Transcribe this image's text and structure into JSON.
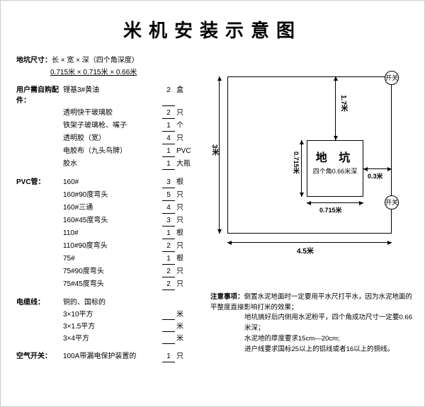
{
  "title": "米机安装示意图",
  "pit_dim": {
    "label": "地坑尺寸：",
    "spec": "长 × 宽 × 深（四个角深度）",
    "values": "0.715米 × 0.715米 × 0.66米"
  },
  "groups": [
    {
      "name": "用户需自购配件：",
      "items": [
        {
          "item": "锂基3#黄油",
          "qty": "2",
          "unit": "盒"
        },
        {
          "item": "透明快干玻璃胶",
          "qty": "2",
          "unit": "只"
        },
        {
          "item": "铁架子玻璃枪、嘴子",
          "qty": "1",
          "unit": "个"
        },
        {
          "item": "透明胶（宽）",
          "qty": "4",
          "unit": "只"
        },
        {
          "item": "电胶布（九头鸟牌）",
          "qty": "1",
          "unit": "PVC"
        },
        {
          "item": "胶水",
          "qty": "1",
          "unit": "大瓶"
        }
      ]
    },
    {
      "name": "PVC管：",
      "items": [
        {
          "item": "160#",
          "qty": "3",
          "unit": "根"
        },
        {
          "item": "160#90度弯头",
          "qty": "5",
          "unit": "只"
        },
        {
          "item": "160#三通",
          "qty": "4",
          "unit": "只"
        },
        {
          "item": "160#45度弯头",
          "qty": "3",
          "unit": "只"
        },
        {
          "item": "110#",
          "qty": "1",
          "unit": "根"
        },
        {
          "item": "110#90度弯头",
          "qty": "2",
          "unit": "只"
        },
        {
          "item": "75#",
          "qty": "1",
          "unit": "根"
        },
        {
          "item": "75#90度弯头",
          "qty": "2",
          "unit": "只"
        },
        {
          "item": "75#45度弯头",
          "qty": "2",
          "unit": "只"
        }
      ]
    },
    {
      "name": "电缆线：",
      "items": [
        {
          "item": "铜的、国标的",
          "qty": "",
          "unit": ""
        },
        {
          "item": "3×10平方",
          "qty": "",
          "unit": "米"
        },
        {
          "item": "3×1.5平方",
          "qty": "",
          "unit": "米"
        },
        {
          "item": "3×4平方",
          "qty": "",
          "unit": "米"
        }
      ]
    },
    {
      "name": "空气开关：",
      "items": [
        {
          "item": "100A带漏电保护装置的",
          "qty": "1",
          "unit": "只"
        }
      ]
    }
  ],
  "diagram": {
    "switch": "开关",
    "outer_w": "4.5米",
    "outer_h": "3米",
    "pit_label": "地 坑",
    "pit_sub": "四个角0.66米深",
    "pit_w": "0.715米",
    "pit_h": "0.715米",
    "right_gap": "0.3米",
    "top_gap": "1.7米"
  },
  "notes": {
    "head": "注意事项：",
    "lines": [
      "倒置水泥地面时一定要用平水尺打平水，因为水泥地面的平整度直接影响打米的效果；",
      "地坑搞好后内侧用水泥粉平，四个角成功尺寸一定要0.66米深；",
      "水泥地的厚度要求15cm—20cm;",
      "进户线要求国标25以上的铝线或者16以上的铜线。"
    ]
  }
}
